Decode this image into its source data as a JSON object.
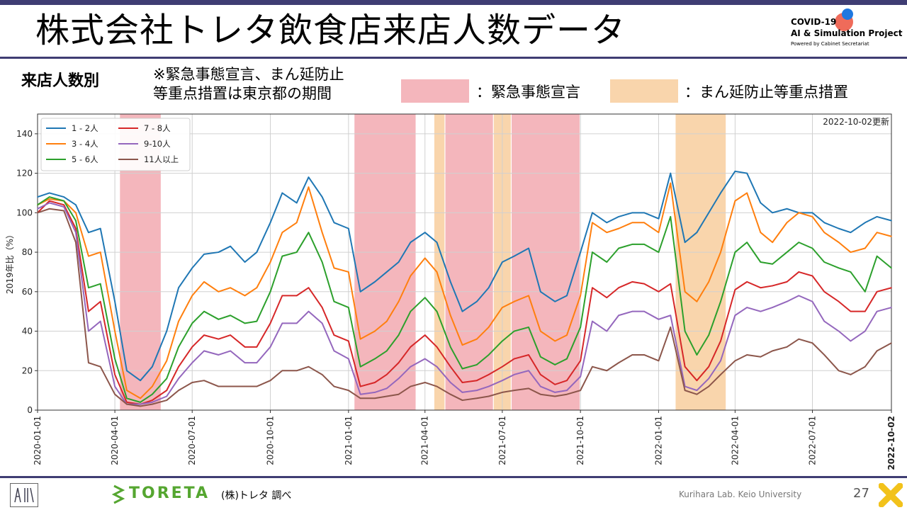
{
  "header": {
    "title": "株式会社トレタ飲食店来店人数データ",
    "logo_line1": "COVID-19",
    "logo_line2": "AI & Simulation Project",
    "logo_line3": "Powered by Cabinet Secretariat"
  },
  "section_title": "来店人数別",
  "note_line1": "※緊急事態宣言、まん延防止",
  "note_line2": "等重点措置は東京都の期間",
  "legend_top": {
    "emergency_label": "：緊急事態宣言",
    "emergency_color": "#f4b6bc",
    "priority_label": "：まん延防止等重点措置",
    "priority_color": "#f9d5ac"
  },
  "footer": {
    "toreta": "TORETA",
    "source": "(株)トレタ 調べ",
    "lab": "Kurihara Lab. Keio University",
    "page": "27"
  },
  "chart_data": {
    "type": "line",
    "update_note": "2022-10-02更新",
    "ylabel": "2019年比（%）",
    "xlabel": "",
    "ylim": [
      0,
      150
    ],
    "yticks": [
      0,
      20,
      40,
      60,
      80,
      100,
      120,
      140
    ],
    "xlim": [
      "2020-01-01",
      "2022-10-02"
    ],
    "xticks": [
      "2020-01-01",
      "2020-04-01",
      "2020-07-01",
      "2020-10-01",
      "2021-01-01",
      "2021-04-01",
      "2021-07-01",
      "2021-10-01",
      "2022-01-01",
      "2022-04-01",
      "2022-07-01",
      "2022-10-02"
    ],
    "grid": true,
    "legend_position": "top-left",
    "emergency_periods": [
      [
        "2020-04-07",
        "2020-05-25"
      ],
      [
        "2021-01-08",
        "2021-03-21"
      ],
      [
        "2021-04-25",
        "2021-06-20"
      ],
      [
        "2021-07-12",
        "2021-09-30"
      ]
    ],
    "priority_periods": [
      [
        "2021-04-12",
        "2021-04-24"
      ],
      [
        "2021-06-21",
        "2021-07-11"
      ],
      [
        "2022-01-21",
        "2022-03-21"
      ]
    ],
    "x": [
      "2020-01-01",
      "2020-01-15",
      "2020-02-01",
      "2020-02-15",
      "2020-03-01",
      "2020-03-15",
      "2020-04-01",
      "2020-04-15",
      "2020-05-01",
      "2020-05-15",
      "2020-06-01",
      "2020-06-15",
      "2020-07-01",
      "2020-07-15",
      "2020-08-01",
      "2020-08-15",
      "2020-09-01",
      "2020-09-15",
      "2020-10-01",
      "2020-10-15",
      "2020-11-01",
      "2020-11-15",
      "2020-12-01",
      "2020-12-15",
      "2021-01-01",
      "2021-01-15",
      "2021-02-01",
      "2021-02-15",
      "2021-03-01",
      "2021-03-15",
      "2021-04-01",
      "2021-04-15",
      "2021-05-01",
      "2021-05-15",
      "2021-06-01",
      "2021-06-15",
      "2021-07-01",
      "2021-07-15",
      "2021-08-01",
      "2021-08-15",
      "2021-09-01",
      "2021-09-15",
      "2021-10-01",
      "2021-10-15",
      "2021-11-01",
      "2021-11-15",
      "2021-12-01",
      "2021-12-15",
      "2022-01-01",
      "2022-01-15",
      "2022-02-01",
      "2022-02-15",
      "2022-03-01",
      "2022-03-15",
      "2022-04-01",
      "2022-04-15",
      "2022-05-01",
      "2022-05-15",
      "2022-06-01",
      "2022-06-15",
      "2022-07-01",
      "2022-07-15",
      "2022-08-01",
      "2022-08-15",
      "2022-09-01",
      "2022-09-15",
      "2022-10-02"
    ],
    "series": [
      {
        "name": "1 - 2人",
        "color": "#1f77b4",
        "values": [
          108,
          110,
          108,
          104,
          90,
          92,
          55,
          20,
          15,
          22,
          40,
          62,
          72,
          79,
          80,
          83,
          75,
          80,
          95,
          110,
          105,
          118,
          108,
          95,
          92,
          60,
          65,
          70,
          75,
          85,
          90,
          85,
          65,
          50,
          55,
          62,
          75,
          78,
          82,
          60,
          55,
          58,
          80,
          100,
          95,
          98,
          100,
          100,
          97,
          120,
          85,
          90,
          100,
          110,
          121,
          120,
          105,
          100,
          102,
          100,
          100,
          95,
          92,
          90,
          95,
          98,
          96
        ]
      },
      {
        "name": "3 - 4人",
        "color": "#ff7f0e",
        "values": [
          104,
          107,
          106,
          100,
          78,
          80,
          40,
          10,
          6,
          12,
          25,
          45,
          58,
          65,
          60,
          62,
          58,
          62,
          75,
          90,
          95,
          113,
          90,
          72,
          70,
          36,
          40,
          45,
          55,
          68,
          77,
          70,
          48,
          33,
          36,
          42,
          52,
          55,
          58,
          40,
          35,
          38,
          58,
          95,
          90,
          92,
          95,
          95,
          90,
          115,
          60,
          55,
          65,
          80,
          106,
          110,
          90,
          85,
          95,
          100,
          98,
          90,
          85,
          80,
          82,
          90,
          88
        ]
      },
      {
        "name": "5 - 6人",
        "color": "#2ca02c",
        "values": [
          104,
          108,
          106,
          96,
          62,
          64,
          26,
          6,
          4,
          8,
          16,
          32,
          44,
          50,
          46,
          48,
          44,
          45,
          60,
          78,
          80,
          90,
          75,
          55,
          52,
          22,
          26,
          30,
          38,
          50,
          57,
          50,
          32,
          21,
          23,
          28,
          35,
          40,
          42,
          27,
          23,
          26,
          42,
          80,
          75,
          82,
          84,
          84,
          80,
          98,
          40,
          28,
          38,
          55,
          80,
          85,
          75,
          74,
          80,
          85,
          82,
          75,
          72,
          70,
          60,
          78,
          72
        ]
      },
      {
        "name": "7 - 8人",
        "color": "#d62728",
        "values": [
          100,
          106,
          104,
          92,
          50,
          55,
          18,
          4,
          3,
          5,
          10,
          22,
          32,
          38,
          36,
          38,
          32,
          32,
          44,
          58,
          58,
          62,
          52,
          38,
          35,
          12,
          14,
          18,
          24,
          32,
          38,
          32,
          22,
          14,
          15,
          18,
          22,
          26,
          28,
          18,
          13,
          15,
          25,
          62,
          57,
          62,
          65,
          64,
          60,
          64,
          22,
          15,
          22,
          35,
          61,
          65,
          62,
          63,
          65,
          70,
          68,
          60,
          55,
          50,
          50,
          60,
          62
        ]
      },
      {
        "name": "9-10人",
        "color": "#9467bd",
        "values": [
          102,
          105,
          103,
          90,
          40,
          45,
          12,
          3,
          3,
          4,
          7,
          16,
          24,
          30,
          28,
          30,
          24,
          24,
          32,
          44,
          44,
          50,
          44,
          30,
          26,
          8,
          9,
          11,
          16,
          22,
          26,
          22,
          14,
          9,
          10,
          12,
          15,
          18,
          20,
          12,
          9,
          10,
          17,
          45,
          40,
          48,
          50,
          50,
          46,
          48,
          12,
          10,
          16,
          25,
          48,
          52,
          50,
          52,
          55,
          58,
          55,
          45,
          40,
          35,
          40,
          50,
          52
        ]
      },
      {
        "name": "11人以上",
        "color": "#8c564b",
        "values": [
          100,
          102,
          101,
          85,
          24,
          22,
          8,
          3,
          2,
          3,
          5,
          10,
          14,
          15,
          12,
          12,
          12,
          12,
          15,
          20,
          20,
          22,
          18,
          12,
          10,
          6,
          6,
          7,
          8,
          12,
          14,
          12,
          8,
          5,
          6,
          7,
          9,
          10,
          11,
          8,
          7,
          8,
          10,
          22,
          20,
          24,
          28,
          28,
          25,
          42,
          10,
          8,
          12,
          18,
          25,
          28,
          27,
          30,
          32,
          36,
          34,
          28,
          20,
          18,
          22,
          30,
          34
        ]
      }
    ]
  }
}
